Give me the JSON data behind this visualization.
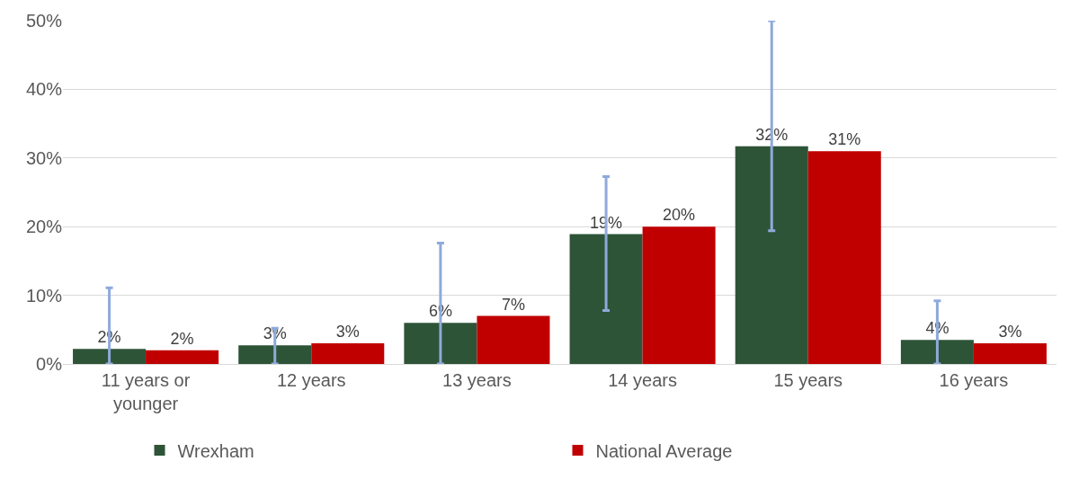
{
  "chart_data": {
    "type": "bar",
    "categories": [
      "11 years or younger",
      "12 years",
      "13 years",
      "14 years",
      "15 years",
      "16 years"
    ],
    "series": [
      {
        "name": "Wrexham",
        "color": "#2e5437",
        "values": [
          2.2,
          2.7,
          6.0,
          18.9,
          31.7,
          3.5
        ],
        "value_labels": [
          "2%",
          "3%",
          "6%",
          "19%",
          "32%",
          "4%"
        ],
        "errors": [
          [
            0,
            11.1
          ],
          [
            0,
            5.2
          ],
          [
            0,
            17.6
          ],
          [
            7.8,
            27.3
          ],
          [
            19.4,
            50
          ],
          [
            0,
            9.2
          ]
        ]
      },
      {
        "name": "National Average",
        "color": "#c00000",
        "values": [
          2,
          3,
          7,
          20,
          31,
          3
        ],
        "value_labels": [
          "2%",
          "3%",
          "7%",
          "20%",
          "31%",
          "3%"
        ]
      }
    ],
    "ylim": [
      0,
      50
    ],
    "yticks": [
      {
        "value": 0,
        "label": "0%"
      },
      {
        "value": 10,
        "label": "10%"
      },
      {
        "value": 20,
        "label": "20%"
      },
      {
        "value": 30,
        "label": "30%"
      },
      {
        "value": 40,
        "label": "40%"
      },
      {
        "value": 50,
        "label": "50%"
      }
    ],
    "grid": "y",
    "legend": "bottom"
  }
}
